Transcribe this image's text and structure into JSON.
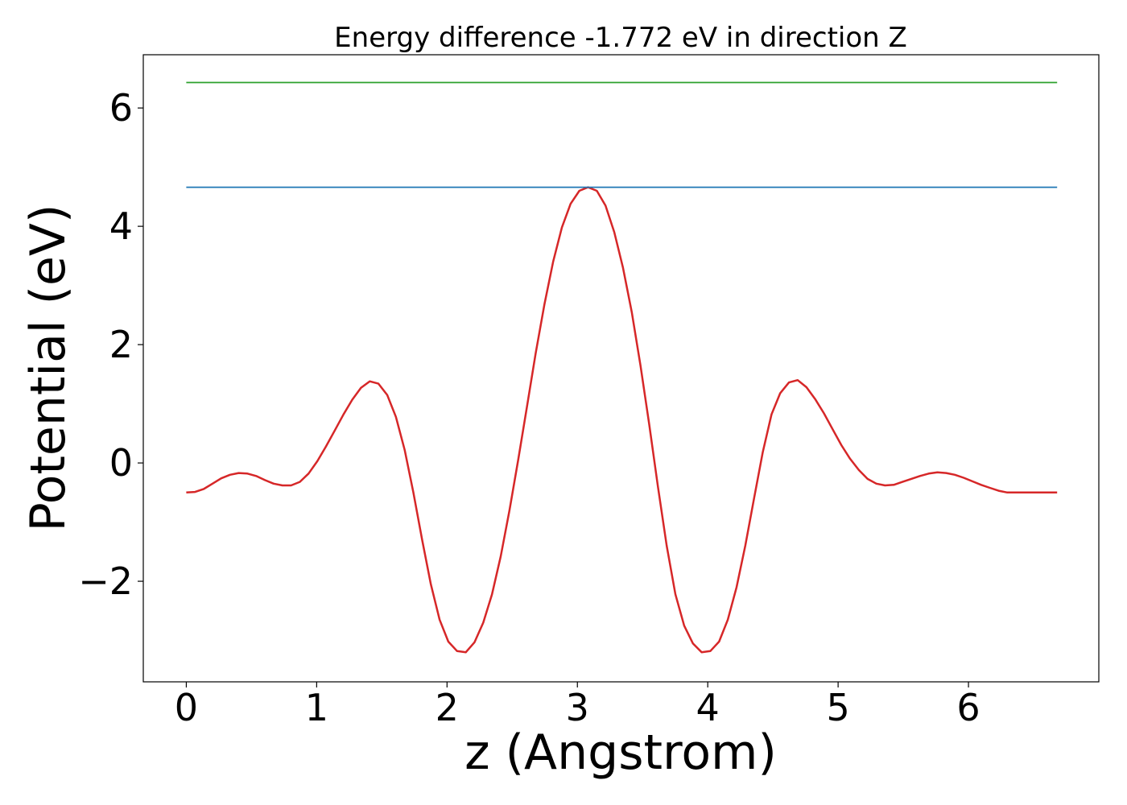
{
  "chart_data": {
    "type": "line",
    "title": "Energy difference -1.772 eV in direction Z",
    "xlabel": "z (Angstrom)",
    "ylabel": "Potential (eV)",
    "xlim": [
      -0.33,
      7.0
    ],
    "ylim": [
      -3.7,
      6.9
    ],
    "x_ticks": [
      0,
      1,
      2,
      3,
      4,
      5,
      6
    ],
    "x_tick_labels": [
      "0",
      "1",
      "2",
      "3",
      "4",
      "5",
      "6"
    ],
    "y_ticks": [
      -2,
      0,
      2,
      4,
      6
    ],
    "y_tick_labels": [
      "−2",
      "0",
      "2",
      "4",
      "6"
    ],
    "grid": false,
    "series": [
      {
        "color": "#d62728",
        "x": [
          0,
          0.067,
          0.134,
          0.201,
          0.268,
          0.335,
          0.402,
          0.469,
          0.536,
          0.603,
          0.67,
          0.737,
          0.804,
          0.871,
          0.938,
          1.005,
          1.072,
          1.139,
          1.206,
          1.273,
          1.34,
          1.407,
          1.474,
          1.541,
          1.608,
          1.675,
          1.742,
          1.809,
          1.876,
          1.943,
          2.01,
          2.077,
          2.144,
          2.211,
          2.278,
          2.345,
          2.412,
          2.479,
          2.546,
          2.613,
          2.68,
          2.747,
          2.814,
          2.881,
          2.948,
          3.015,
          3.082,
          3.149,
          3.216,
          3.283,
          3.35,
          3.417,
          3.484,
          3.551,
          3.618,
          3.685,
          3.752,
          3.819,
          3.886,
          3.953,
          4.02,
          4.087,
          4.154,
          4.221,
          4.288,
          4.355,
          4.422,
          4.489,
          4.556,
          4.623,
          4.69,
          4.757,
          4.824,
          4.891,
          4.958,
          5.025,
          5.092,
          5.159,
          5.226,
          5.293,
          5.36,
          5.427,
          5.494,
          5.561,
          5.628,
          5.695,
          5.762,
          5.829,
          5.896,
          5.963,
          6.03,
          6.097,
          6.164,
          6.231,
          6.298,
          6.365,
          6.432,
          6.499,
          6.566,
          6.633,
          6.68
        ],
        "y": [
          -0.5,
          -0.49,
          -0.44,
          -0.35,
          -0.26,
          -0.2,
          -0.17,
          -0.18,
          -0.22,
          -0.29,
          -0.35,
          -0.38,
          -0.38,
          -0.32,
          -0.18,
          0.03,
          0.28,
          0.55,
          0.82,
          1.07,
          1.27,
          1.38,
          1.34,
          1.15,
          0.78,
          0.22,
          -0.5,
          -1.3,
          -2.05,
          -2.65,
          -3.02,
          -3.18,
          -3.2,
          -3.03,
          -2.7,
          -2.22,
          -1.58,
          -0.8,
          0.05,
          0.95,
          1.85,
          2.68,
          3.4,
          3.98,
          4.38,
          4.6,
          4.66,
          4.6,
          4.35,
          3.9,
          3.3,
          2.55,
          1.65,
          0.65,
          -0.4,
          -1.4,
          -2.22,
          -2.75,
          -3.05,
          -3.2,
          -3.18,
          -3.02,
          -2.65,
          -2.1,
          -1.4,
          -0.6,
          0.18,
          0.82,
          1.18,
          1.36,
          1.4,
          1.28,
          1.08,
          0.84,
          0.57,
          0.3,
          0.07,
          -0.12,
          -0.27,
          -0.35,
          -0.38,
          -0.37,
          -0.32,
          -0.27,
          -0.22,
          -0.18,
          -0.16,
          -0.17,
          -0.2,
          -0.25,
          -0.31,
          -0.37,
          -0.42,
          -0.47,
          -0.5,
          -0.5,
          -0.5,
          -0.5,
          -0.5,
          -0.5,
          -0.5
        ]
      },
      {
        "color": "#1f77b4",
        "x": [
          0,
          6.68
        ],
        "y": [
          4.66,
          4.66
        ]
      },
      {
        "color": "#2ca02c",
        "x": [
          0,
          6.68
        ],
        "y": [
          6.43,
          6.43
        ]
      }
    ]
  }
}
